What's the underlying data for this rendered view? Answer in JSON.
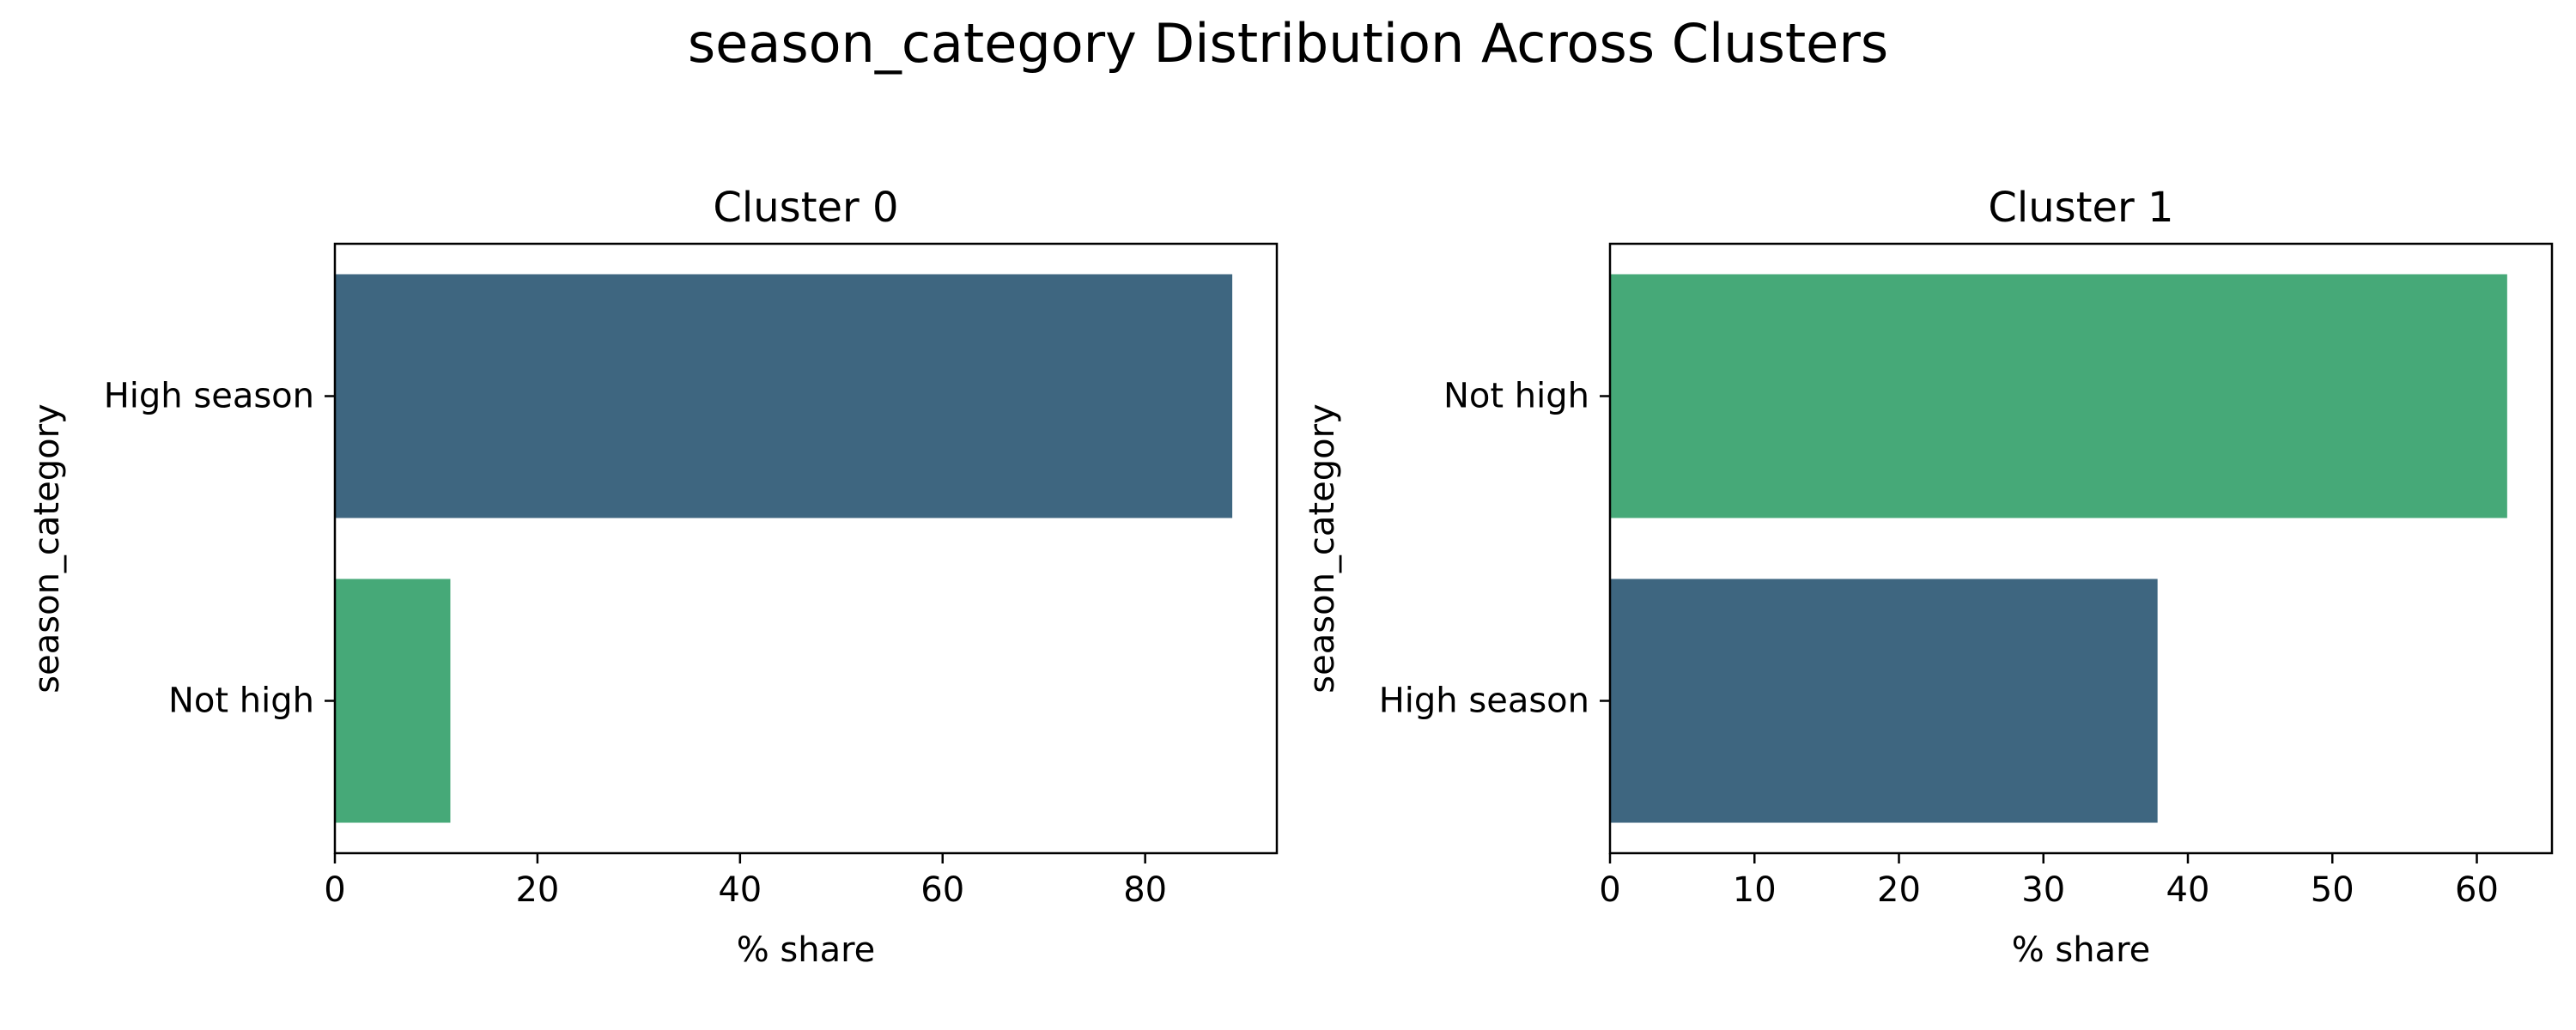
{
  "suptitle": "season_category Distribution Across Clusters",
  "chart_data": [
    {
      "type": "bar",
      "orientation": "horizontal",
      "title": "Cluster 0",
      "xlabel": "% share",
      "ylabel": "season_category",
      "categories": [
        "High season",
        "Not high"
      ],
      "values": [
        88.6,
        11.4
      ],
      "colors": [
        "#3e6680",
        "#46a978"
      ],
      "xlim": [
        0,
        93
      ],
      "xticks": [
        0,
        20,
        40,
        60,
        80
      ],
      "grid": false,
      "legend": "none"
    },
    {
      "type": "bar",
      "orientation": "horizontal",
      "title": "Cluster 1",
      "xlabel": "% share",
      "ylabel": "season_category",
      "categories": [
        "Not high",
        "High season"
      ],
      "values": [
        62.1,
        37.9
      ],
      "colors": [
        "#46a978",
        "#3e6680"
      ],
      "xlim": [
        0,
        65.2
      ],
      "xticks": [
        0,
        10,
        20,
        30,
        40,
        50,
        60
      ],
      "grid": false,
      "legend": "none"
    }
  ]
}
